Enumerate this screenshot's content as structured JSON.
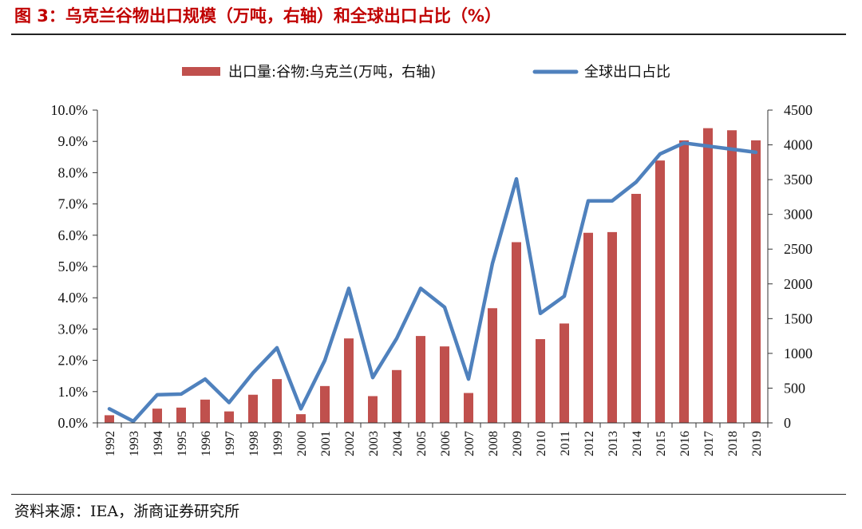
{
  "header": {
    "title": "图 3：乌克兰谷物出口规模（万吨，右轴）和全球出口占比（%）"
  },
  "footer": {
    "source": "资料来源：IEA，浙商证券研究所"
  },
  "chart_data": {
    "type": "bar",
    "categories": [
      "1992",
      "1993",
      "1994",
      "1995",
      "1996",
      "1997",
      "1998",
      "1999",
      "2000",
      "2001",
      "2002",
      "2003",
      "2004",
      "2005",
      "2006",
      "2007",
      "2008",
      "2009",
      "2010",
      "2011",
      "2012",
      "2013",
      "2014",
      "2015",
      "2016",
      "2017",
      "2018",
      "2019"
    ],
    "series": [
      {
        "name": "出口量:谷物:乌克兰(万吨，右轴)",
        "type": "bar",
        "axis": "right",
        "color": "#c0504d",
        "values": [
          110,
          0,
          205,
          220,
          335,
          165,
          405,
          630,
          125,
          530,
          1215,
          385,
          760,
          1250,
          1100,
          430,
          1650,
          2600,
          1205,
          1430,
          2735,
          2745,
          3295,
          3775,
          4065,
          4240,
          4210,
          4065
        ]
      },
      {
        "name": "全球出口占比",
        "type": "line",
        "axis": "left",
        "color": "#4f81bd",
        "values": [
          0.45,
          0.05,
          0.9,
          0.92,
          1.4,
          0.65,
          1.6,
          2.4,
          0.45,
          2.0,
          4.3,
          1.45,
          2.7,
          4.3,
          3.7,
          1.4,
          5.1,
          7.8,
          3.5,
          4.05,
          7.1,
          7.1,
          7.7,
          8.6,
          8.95,
          8.85,
          8.75,
          8.65
        ]
      }
    ],
    "y_left": {
      "ticks": [
        "0.0%",
        "1.0%",
        "2.0%",
        "3.0%",
        "4.0%",
        "5.0%",
        "6.0%",
        "7.0%",
        "8.0%",
        "9.0%",
        "10.0%"
      ],
      "range": [
        0,
        10
      ]
    },
    "y_right": {
      "ticks": [
        "0",
        "500",
        "1000",
        "1500",
        "2000",
        "2500",
        "3000",
        "3500",
        "4000",
        "4500"
      ],
      "range": [
        0,
        4500
      ]
    },
    "grid": false,
    "legend_position": "top-center"
  }
}
